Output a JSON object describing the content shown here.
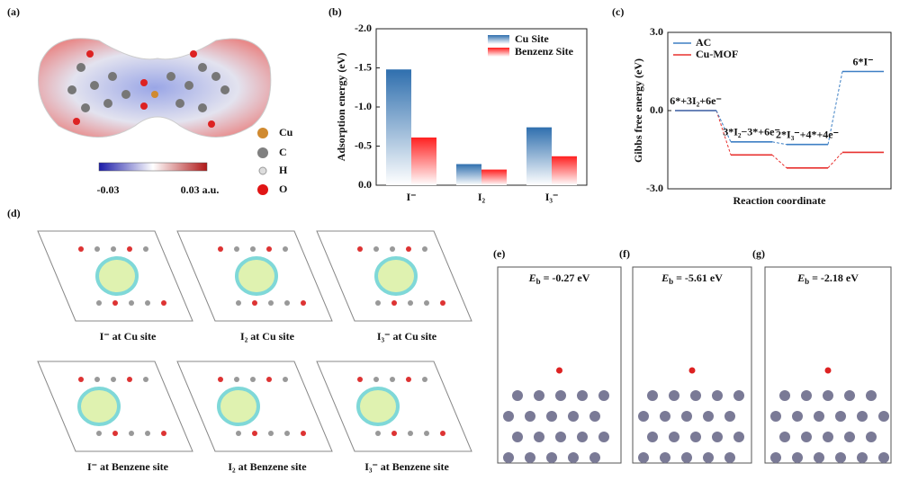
{
  "panel_labels": [
    "(a)",
    "(b)",
    "(c)",
    "(d)",
    "(e)",
    "(f)",
    "(g)"
  ],
  "panel_a": {
    "colorbar_labels": [
      "-0.03",
      "0.03 a.u."
    ],
    "legend": [
      "Cu",
      "C",
      "H",
      "O"
    ]
  },
  "chart_data": [
    {
      "type": "bar",
      "y_label": "Adsorption energy (eV)",
      "categories": [
        "I⁻",
        "I₂",
        "I₃⁻"
      ],
      "series": [
        {
          "name": "Cu Site",
          "color": "#2f6fae",
          "values": [
            -1.48,
            -0.27,
            -0.74
          ]
        },
        {
          "name": "Benzenz Site",
          "color": "#ff2020",
          "values": [
            -0.61,
            -0.2,
            -0.37
          ]
        }
      ],
      "ylim": [
        0,
        -2
      ],
      "yticks": [
        {
          "value": -2,
          "label": "-2.0"
        },
        -1.5,
        {
          "value": -1,
          "label": "-1.0"
        },
        -0.5,
        {
          "value": 0,
          "label": "0.0"
        }
      ],
      "legend": "upper right"
    },
    {
      "type": "energy-profile",
      "x_label": "Reaction coordinate",
      "y_label": "Gibbs free energy (eV)",
      "categories": [
        "6*+3I₂+6e⁻",
        "3*I₂−3*+6e⁻",
        "2*I₃⁻+4*+4e⁻",
        "6*I⁻"
      ],
      "series": [
        {
          "name": "AC",
          "color": "#3d7fc4",
          "values": [
            0,
            -1.2,
            -1.3,
            1.5
          ]
        },
        {
          "name": "Cu-MOF",
          "color": "#e8312f",
          "values": [
            0,
            -1.7,
            -2.2,
            -1.6
          ]
        }
      ],
      "ylim": [
        -3,
        3
      ],
      "yticks": [
        {
          "value": 3,
          "label": "3.0"
        },
        {
          "value": 0,
          "label": "0.0"
        },
        {
          "value": -3,
          "label": "-3.0"
        }
      ],
      "legend": "upper left"
    }
  ],
  "panel_d": {
    "captions": [
      "I⁻ at Cu site",
      "I₂ at Cu site",
      "I₃⁻ at Cu site",
      "I⁻ at Benzene site",
      "I₂ at Benzene site",
      "I₃⁻ at Benzene site"
    ]
  },
  "panel_efg": {
    "energies": [
      {
        "symbol": "E",
        "subscript": "b",
        "text": "= -0.27 eV"
      },
      {
        "symbol": "E",
        "subscript": "b",
        "text": "= -5.61 eV"
      },
      {
        "symbol": "E",
        "subscript": "b",
        "text": "= -2.18 eV"
      }
    ]
  }
}
